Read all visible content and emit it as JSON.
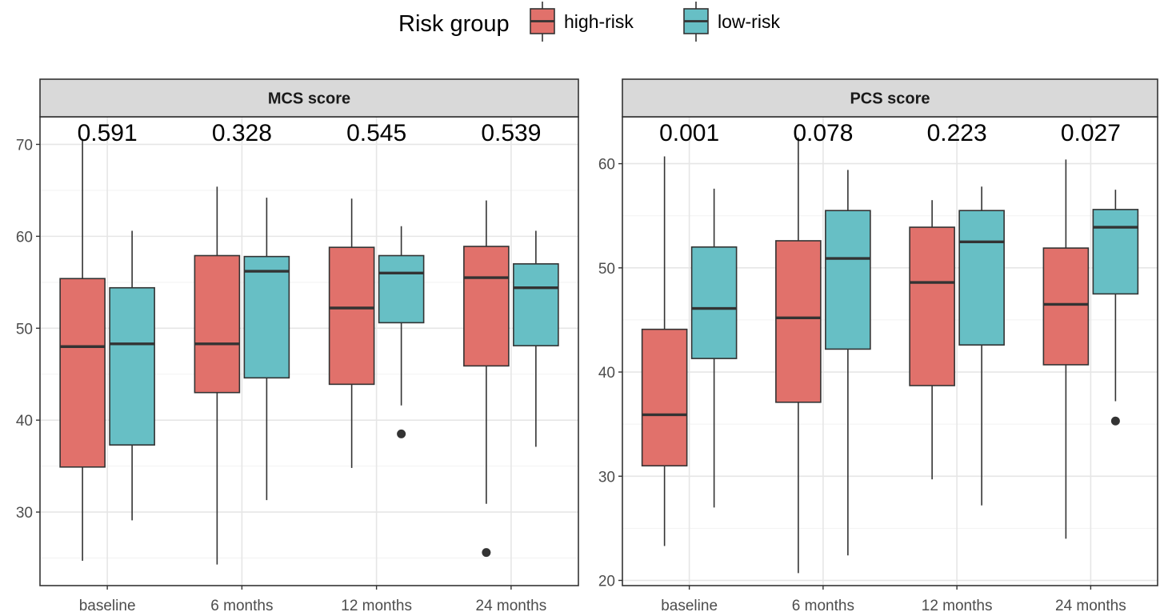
{
  "chart_data": {
    "type": "boxplot",
    "legend": {
      "title": "Risk group",
      "position": "top",
      "entries": [
        {
          "name": "high-risk",
          "color": "#E1716B"
        },
        {
          "name": "low-risk",
          "color": "#67BFC5"
        }
      ]
    },
    "categories": [
      "baseline",
      "6 months",
      "12  months",
      "24 months"
    ],
    "grid": true,
    "panels": [
      {
        "title": "MCS score",
        "ylim": [
          22,
          73
        ],
        "yticks": [
          30,
          40,
          50,
          60,
          70
        ],
        "pvalues": [
          "0.591",
          "0.328",
          "0.545",
          "0.539"
        ],
        "series": [
          {
            "name": "high-risk",
            "boxes": [
              {
                "min": 24.7,
                "q1": 34.9,
                "median": 48.0,
                "q3": 55.4,
                "max": 70.6,
                "outliers": []
              },
              {
                "min": 24.3,
                "q1": 43.0,
                "median": 48.3,
                "q3": 57.9,
                "max": 65.4,
                "outliers": []
              },
              {
                "min": 34.8,
                "q1": 43.9,
                "median": 52.2,
                "q3": 58.8,
                "max": 64.1,
                "outliers": []
              },
              {
                "min": 30.9,
                "q1": 45.9,
                "median": 55.5,
                "q3": 58.9,
                "max": 63.9,
                "outliers": [
                  25.6
                ]
              }
            ]
          },
          {
            "name": "low-risk",
            "boxes": [
              {
                "min": 29.1,
                "q1": 37.3,
                "median": 48.3,
                "q3": 54.4,
                "max": 60.6,
                "outliers": []
              },
              {
                "min": 31.3,
                "q1": 44.6,
                "median": 56.2,
                "q3": 57.8,
                "max": 64.2,
                "outliers": []
              },
              {
                "min": 41.6,
                "q1": 50.6,
                "median": 56.0,
                "q3": 57.9,
                "max": 61.1,
                "outliers": [
                  38.5
                ]
              },
              {
                "min": 37.1,
                "q1": 48.1,
                "median": 54.4,
                "q3": 57.0,
                "max": 60.6,
                "outliers": []
              }
            ]
          }
        ]
      },
      {
        "title": "PCS score",
        "ylim": [
          19.5,
          64.5
        ],
        "yticks": [
          20,
          30,
          40,
          50,
          60
        ],
        "pvalues": [
          "0.001",
          "0.078",
          "0.223",
          "0.027"
        ],
        "series": [
          {
            "name": "high-risk",
            "boxes": [
              {
                "min": 23.3,
                "q1": 31.0,
                "median": 35.9,
                "q3": 44.1,
                "max": 60.7,
                "outliers": []
              },
              {
                "min": 20.7,
                "q1": 37.1,
                "median": 45.2,
                "q3": 52.6,
                "max": 62.5,
                "outliers": []
              },
              {
                "min": 29.7,
                "q1": 38.7,
                "median": 48.6,
                "q3": 53.9,
                "max": 56.5,
                "outliers": []
              },
              {
                "min": 24.0,
                "q1": 40.7,
                "median": 46.5,
                "q3": 51.9,
                "max": 60.4,
                "outliers": []
              }
            ]
          },
          {
            "name": "low-risk",
            "boxes": [
              {
                "min": 27.0,
                "q1": 41.3,
                "median": 46.1,
                "q3": 52.0,
                "max": 57.6,
                "outliers": []
              },
              {
                "min": 22.4,
                "q1": 42.2,
                "median": 50.9,
                "q3": 55.5,
                "max": 59.4,
                "outliers": []
              },
              {
                "min": 27.2,
                "q1": 42.6,
                "median": 52.5,
                "q3": 55.5,
                "max": 57.8,
                "outliers": []
              },
              {
                "min": 37.2,
                "q1": 47.5,
                "median": 53.9,
                "q3": 55.6,
                "max": 57.5,
                "outliers": [
                  35.3
                ]
              }
            ]
          }
        ]
      }
    ]
  }
}
